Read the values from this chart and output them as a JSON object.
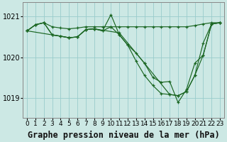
{
  "bg_color": "#cce8e4",
  "grid_color": "#99cccc",
  "line_color": "#1a6622",
  "title": "Graphe pression niveau de la mer (hPa)",
  "xlim": [
    -0.5,
    23.5
  ],
  "ylim": [
    1018.5,
    1021.35
  ],
  "yticks": [
    1019,
    1020,
    1021
  ],
  "xticks": [
    0,
    1,
    2,
    3,
    4,
    5,
    6,
    7,
    8,
    9,
    10,
    11,
    12,
    13,
    14,
    15,
    16,
    17,
    18,
    19,
    20,
    21,
    22,
    23
  ],
  "series": [
    {
      "x": [
        0,
        1,
        2,
        3,
        4,
        5,
        6,
        7,
        8,
        9,
        10,
        11,
        12,
        13,
        14,
        15,
        16,
        17,
        18,
        19,
        20,
        21,
        22,
        23
      ],
      "y": [
        1020.65,
        1020.8,
        1020.85,
        1020.75,
        1020.72,
        1020.7,
        1020.72,
        1020.75,
        1020.75,
        1020.75,
        1020.75,
        1020.75,
        1020.75,
        1020.75,
        1020.75,
        1020.75,
        1020.75,
        1020.75,
        1020.75,
        1020.75,
        1020.78,
        1020.82,
        1020.85,
        1020.85
      ]
    },
    {
      "x": [
        0,
        1,
        2,
        3,
        4,
        5,
        6,
        7,
        8,
        9,
        10,
        11,
        12,
        13,
        14,
        15,
        16,
        17,
        18,
        19,
        20,
        21,
        22,
        23
      ],
      "y": [
        1020.65,
        1020.8,
        1020.85,
        1020.55,
        1020.52,
        1020.48,
        1020.5,
        1020.68,
        1020.7,
        1020.65,
        1021.05,
        1020.55,
        1020.3,
        1020.1,
        1019.85,
        1019.5,
        1019.38,
        1019.4,
        1018.88,
        1019.2,
        1019.85,
        1020.05,
        1020.82,
        1020.85
      ]
    },
    {
      "x": [
        0,
        1,
        2,
        3,
        4,
        5,
        6,
        7,
        8,
        9,
        10,
        11,
        12,
        13,
        14,
        15,
        16,
        17,
        18,
        19,
        20,
        21,
        22,
        23
      ],
      "y": [
        1020.65,
        1020.8,
        1020.85,
        1020.55,
        1020.52,
        1020.48,
        1020.5,
        1020.68,
        1020.7,
        1020.65,
        1020.75,
        1020.55,
        1020.3,
        1019.9,
        1019.55,
        1019.3,
        1019.1,
        1019.08,
        1019.05,
        1019.15,
        1019.55,
        1020.05,
        1020.82,
        1020.85
      ]
    },
    {
      "x": [
        0,
        3,
        5,
        6,
        7,
        8,
        11,
        14,
        17,
        18,
        19,
        20,
        21,
        22,
        23
      ],
      "y": [
        1020.65,
        1020.55,
        1020.48,
        1020.5,
        1020.68,
        1020.7,
        1020.6,
        1019.85,
        1019.08,
        1019.05,
        1019.15,
        1019.55,
        1020.35,
        1020.82,
        1020.85
      ]
    }
  ],
  "title_fontsize": 8.5,
  "tick_fontsize": 6.5
}
